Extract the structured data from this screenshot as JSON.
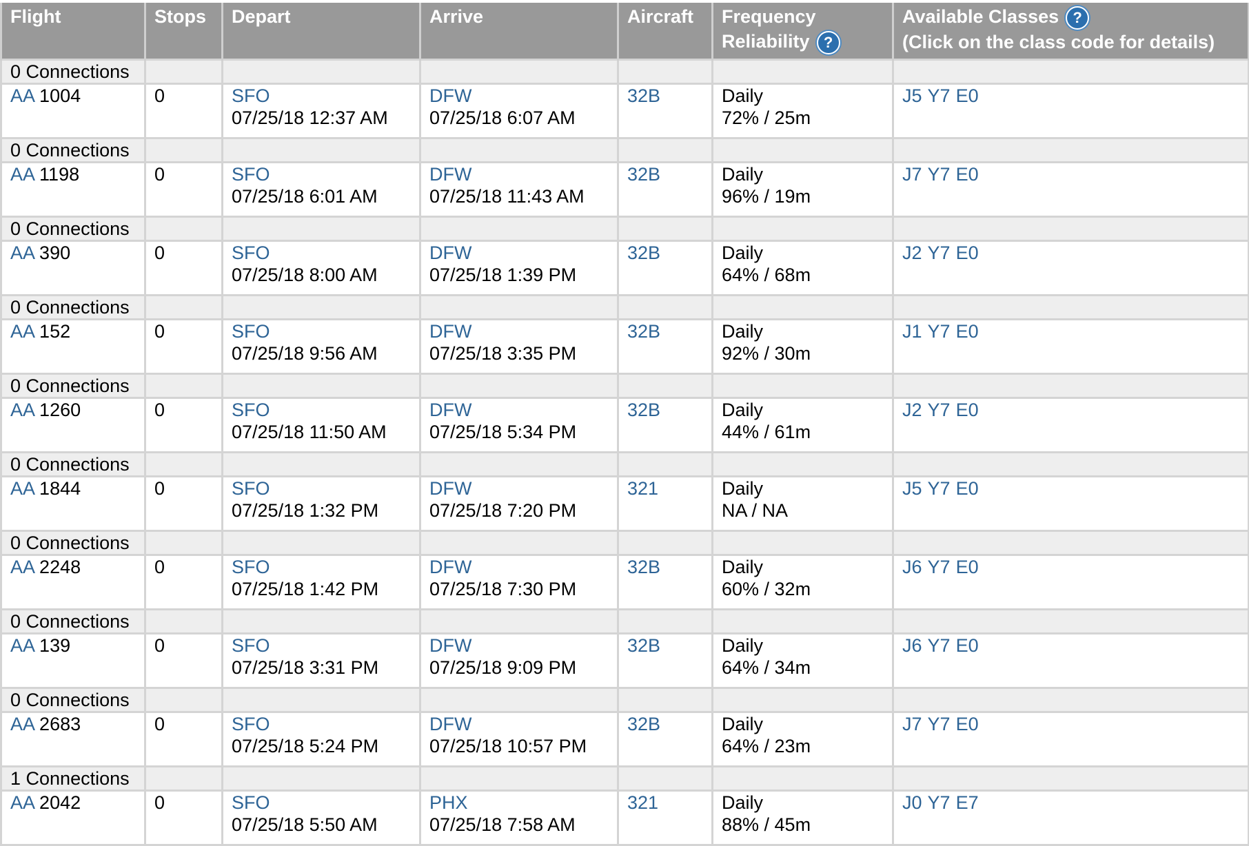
{
  "headers": {
    "flight": "Flight",
    "stops": "Stops",
    "depart": "Depart",
    "arrive": "Arrive",
    "aircraft": "Aircraft",
    "frequency": "Frequency",
    "reliability": "Reliability",
    "available_classes": "Available Classes",
    "class_note": "(Click on the class code for details)",
    "help_glyph": "?"
  },
  "icons": {
    "help": "question-circle-icon"
  },
  "colors": {
    "header_bg": "#999999",
    "link": "#2e6496",
    "connection_row_bg": "#eeeeee"
  },
  "flights": [
    {
      "connections": "0 Connections",
      "airline": "AA",
      "number": "1004",
      "stops": "0",
      "from": "SFO",
      "depart_time": "07/25/18 12:37 AM",
      "to": "DFW",
      "arrive_time": "07/25/18 6:07 AM",
      "aircraft": "32B",
      "frequency": "Daily",
      "reliability": "72% / 25m",
      "classes": [
        "J5",
        "Y7",
        "E0"
      ]
    },
    {
      "connections": "0 Connections",
      "airline": "AA",
      "number": "1198",
      "stops": "0",
      "from": "SFO",
      "depart_time": "07/25/18 6:01 AM",
      "to": "DFW",
      "arrive_time": "07/25/18 11:43 AM",
      "aircraft": "32B",
      "frequency": "Daily",
      "reliability": "96% / 19m",
      "classes": [
        "J7",
        "Y7",
        "E0"
      ]
    },
    {
      "connections": "0 Connections",
      "airline": "AA",
      "number": "390",
      "stops": "0",
      "from": "SFO",
      "depart_time": "07/25/18 8:00 AM",
      "to": "DFW",
      "arrive_time": "07/25/18 1:39 PM",
      "aircraft": "32B",
      "frequency": "Daily",
      "reliability": "64% / 68m",
      "classes": [
        "J2",
        "Y7",
        "E0"
      ]
    },
    {
      "connections": "0 Connections",
      "airline": "AA",
      "number": "152",
      "stops": "0",
      "from": "SFO",
      "depart_time": "07/25/18 9:56 AM",
      "to": "DFW",
      "arrive_time": "07/25/18 3:35 PM",
      "aircraft": "32B",
      "frequency": "Daily",
      "reliability": "92% / 30m",
      "classes": [
        "J1",
        "Y7",
        "E0"
      ]
    },
    {
      "connections": "0 Connections",
      "airline": "AA",
      "number": "1260",
      "stops": "0",
      "from": "SFO",
      "depart_time": "07/25/18 11:50 AM",
      "to": "DFW",
      "arrive_time": "07/25/18 5:34 PM",
      "aircraft": "32B",
      "frequency": "Daily",
      "reliability": "44% / 61m",
      "classes": [
        "J2",
        "Y7",
        "E0"
      ]
    },
    {
      "connections": "0 Connections",
      "airline": "AA",
      "number": "1844",
      "stops": "0",
      "from": "SFO",
      "depart_time": "07/25/18 1:32 PM",
      "to": "DFW",
      "arrive_time": "07/25/18 7:20 PM",
      "aircraft": "321",
      "frequency": "Daily",
      "reliability": "NA / NA",
      "classes": [
        "J5",
        "Y7",
        "E0"
      ]
    },
    {
      "connections": "0 Connections",
      "airline": "AA",
      "number": "2248",
      "stops": "0",
      "from": "SFO",
      "depart_time": "07/25/18 1:42 PM",
      "to": "DFW",
      "arrive_time": "07/25/18 7:30 PM",
      "aircraft": "32B",
      "frequency": "Daily",
      "reliability": "60% / 32m",
      "classes": [
        "J6",
        "Y7",
        "E0"
      ]
    },
    {
      "connections": "0 Connections",
      "airline": "AA",
      "number": "139",
      "stops": "0",
      "from": "SFO",
      "depart_time": "07/25/18 3:31 PM",
      "to": "DFW",
      "arrive_time": "07/25/18 9:09 PM",
      "aircraft": "32B",
      "frequency": "Daily",
      "reliability": "64% / 34m",
      "classes": [
        "J6",
        "Y7",
        "E0"
      ]
    },
    {
      "connections": "0 Connections",
      "airline": "AA",
      "number": "2683",
      "stops": "0",
      "from": "SFO",
      "depart_time": "07/25/18 5:24 PM",
      "to": "DFW",
      "arrive_time": "07/25/18 10:57 PM",
      "aircraft": "32B",
      "frequency": "Daily",
      "reliability": "64% / 23m",
      "classes": [
        "J7",
        "Y7",
        "E0"
      ]
    },
    {
      "connections": "1 Connections",
      "airline": "AA",
      "number": "2042",
      "stops": "0",
      "from": "SFO",
      "depart_time": "07/25/18 5:50 AM",
      "to": "PHX",
      "arrive_time": "07/25/18 7:58 AM",
      "aircraft": "321",
      "frequency": "Daily",
      "reliability": "88% / 45m",
      "classes": [
        "J0",
        "Y7",
        "E7"
      ]
    }
  ]
}
